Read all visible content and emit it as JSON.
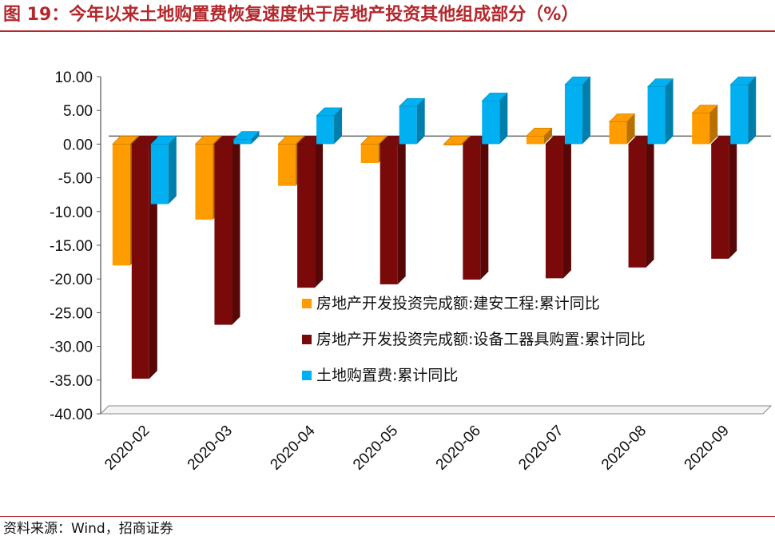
{
  "title": "图 19：今年以来土地购置费恢复速度快于房地产投资其他组成部分（%）",
  "source": "资料来源：Wind，招商证券",
  "colors": {
    "title": "#b3282d",
    "construction": "#ff9c00",
    "equipment": "#7a0a0a",
    "land": "#00b0f0"
  },
  "chart_data": {
    "type": "bar",
    "categories": [
      "2020-02",
      "2020-03",
      "2020-04",
      "2020-05",
      "2020-06",
      "2020-07",
      "2020-08",
      "2020-09"
    ],
    "series": [
      {
        "name": "房地产开发投资完成额:建安工程:累计同比",
        "color": "#ff9c00",
        "values": [
          -18.0,
          -11.2,
          -6.2,
          -2.8,
          -0.2,
          1.2,
          3.3,
          4.6
        ]
      },
      {
        "name": "房地产开发投资完成额:设备工器具购置:累计同比",
        "color": "#7a0a0a",
        "values": [
          -34.8,
          -26.8,
          -21.3,
          -20.8,
          -20.1,
          -19.9,
          -18.3,
          -17.0
        ]
      },
      {
        "name": "土地购置费:累计同比",
        "color": "#00b0f0",
        "values": [
          -8.9,
          0.7,
          4.2,
          5.6,
          6.4,
          8.8,
          8.5,
          8.8
        ]
      }
    ],
    "ylim": [
      -40,
      10
    ],
    "yticks": [
      "10.00",
      "5.00",
      "0.00",
      "-5.00",
      "-10.00",
      "-15.00",
      "-20.00",
      "-25.00",
      "-30.00",
      "-35.00",
      "-40.00"
    ],
    "legend_position": "lower-right inside plot"
  }
}
